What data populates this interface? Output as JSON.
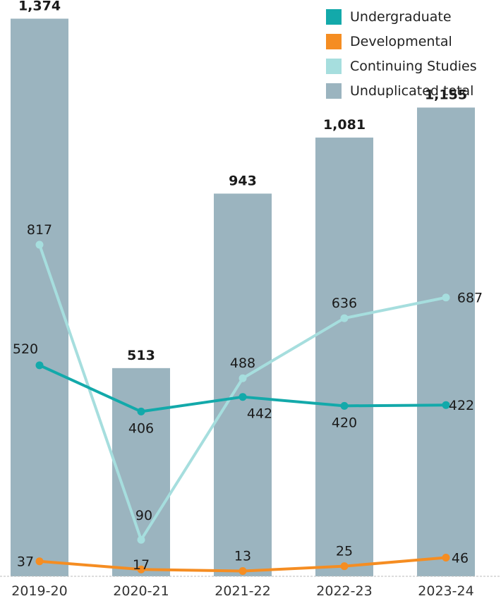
{
  "chart_data": {
    "type": "bar",
    "categories": [
      "2019-20",
      "2020-21",
      "2021-22",
      "2022-23",
      "2023-24"
    ],
    "series": [
      {
        "name": "Unduplicated total",
        "kind": "bar",
        "color": "#9bb4bf",
        "values": [
          1374,
          513,
          943,
          1081,
          1155
        ],
        "labels": [
          "1,374",
          "513",
          "943",
          "1,081",
          "1,155"
        ]
      },
      {
        "name": "Undergraduate",
        "kind": "line",
        "color": "#13a9aa",
        "values": [
          520,
          406,
          442,
          420,
          422
        ],
        "labels": [
          "520",
          "406",
          "442",
          "420",
          "422"
        ]
      },
      {
        "name": "Developmental",
        "kind": "line",
        "color": "#f58d22",
        "values": [
          37,
          17,
          13,
          25,
          46
        ],
        "labels": [
          "37",
          "17",
          "13",
          "25",
          "46"
        ]
      },
      {
        "name": "Continuing Studies",
        "kind": "line",
        "color": "#a6dede",
        "values": [
          817,
          90,
          488,
          636,
          687
        ],
        "labels": [
          "817",
          "90",
          "488",
          "636",
          "687"
        ]
      }
    ],
    "ylim": [
      0,
      1420
    ],
    "legend_position": "top-right",
    "grid": false
  },
  "legend": [
    {
      "label": "Undergraduate",
      "color": "#13a9aa"
    },
    {
      "label": "Developmental",
      "color": "#f58d22"
    },
    {
      "label": "Continuing Studies",
      "color": "#a6dede"
    },
    {
      "label": "Unduplicated total",
      "color": "#9bb4bf"
    }
  ]
}
